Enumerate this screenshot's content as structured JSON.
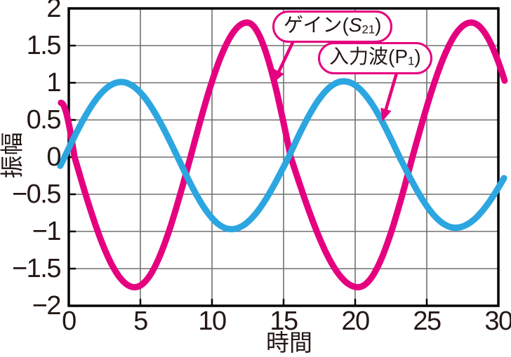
{
  "figure": {
    "background": "#ffffff",
    "text_color": "#231815"
  },
  "chart_data": {
    "type": "line",
    "title": "",
    "xlabel": "時間",
    "ylabel": "振幅",
    "xlim": [
      0,
      30
    ],
    "ylim": [
      -2,
      2
    ],
    "grid": true,
    "frame_color": "#000000",
    "grid_color": "#717171",
    "xticks": [
      {
        "v": 0,
        "label": "0"
      },
      {
        "v": 5,
        "label": "5"
      },
      {
        "v": 10,
        "label": "10"
      },
      {
        "v": 15,
        "label": "15"
      },
      {
        "v": 20,
        "label": "20"
      },
      {
        "v": 25,
        "label": "25"
      },
      {
        "v": 30,
        "label": "30"
      }
    ],
    "yticks": [
      {
        "v": 2,
        "label": "2"
      },
      {
        "v": 1.5,
        "label": "1.5"
      },
      {
        "v": 1,
        "label": "1"
      },
      {
        "v": 0.5,
        "label": "0.5"
      },
      {
        "v": 0,
        "label": "0"
      },
      {
        "v": -0.5,
        "label": "−0.5"
      },
      {
        "v": -1,
        "label": "−1"
      },
      {
        "v": -1.5,
        "label": "−1.5"
      },
      {
        "v": -2,
        "label": "−2"
      }
    ],
    "grid_x_values": [
      5,
      10,
      15,
      20,
      25
    ],
    "grid_y_values": [
      -1.5,
      -1,
      -0.5,
      0,
      0.5,
      1,
      1.5
    ],
    "series": [
      {
        "id": "gain",
        "name": "ゲイン(S21)",
        "color": "#e5007f",
        "stroke_width": 9,
        "amplitude": 1.8,
        "t_start": -0.55,
        "t_end": 30.5,
        "anchors": [
          {
            "t": -0.55,
            "y": 0.73
          },
          {
            "t": 0.4,
            "y": 0
          },
          {
            "t": 4.6,
            "y": -1.75
          },
          {
            "t": 8.5,
            "y": 0
          },
          {
            "t": 12.45,
            "y": 1.81
          },
          {
            "t": 15.5,
            "y": 0
          },
          {
            "t": 20.2,
            "y": -1.75
          },
          {
            "t": 24.0,
            "y": 0
          },
          {
            "t": 28.1,
            "y": 1.81
          },
          {
            "t": 31.9,
            "y": 0
          }
        ]
      },
      {
        "id": "input",
        "name": "入力波(P1)",
        "color": "#2ca6e0",
        "stroke_width": 9,
        "amplitude": 1.0,
        "t_start": -0.65,
        "t_end": 30.55,
        "anchors": [
          {
            "t": -4.15,
            "y": -0.97
          },
          {
            "t": -0.3,
            "y": 0
          },
          {
            "t": 3.65,
            "y": 1.01
          },
          {
            "t": 7.6,
            "y": 0
          },
          {
            "t": 11.35,
            "y": -0.97
          },
          {
            "t": 15.35,
            "y": 0
          },
          {
            "t": 19.2,
            "y": 1.02
          },
          {
            "t": 23.1,
            "y": 0
          },
          {
            "t": 27.0,
            "y": -0.95
          },
          {
            "t": 31.2,
            "y": 0
          }
        ]
      }
    ],
    "annotations": {
      "arrow_color": "#e5007f",
      "callouts": [
        {
          "target": "gain",
          "label_parts": {
            "prefix": "ゲイン(",
            "symbol": "S",
            "subscript": "21",
            "suffix": ")"
          },
          "arrow": {
            "from": {
              "t": 15.95,
              "y": 1.67
            },
            "to": {
              "t": 14.3,
              "y": 1.0
            }
          }
        },
        {
          "target": "input",
          "label_parts": {
            "prefix": "入力波(P",
            "symbol": "",
            "subscript": "1",
            "suffix": ")"
          },
          "arrow": {
            "from": {
              "t": 23.0,
              "y": 1.2
            },
            "to": {
              "t": 21.9,
              "y": 0.48
            }
          }
        }
      ]
    }
  }
}
